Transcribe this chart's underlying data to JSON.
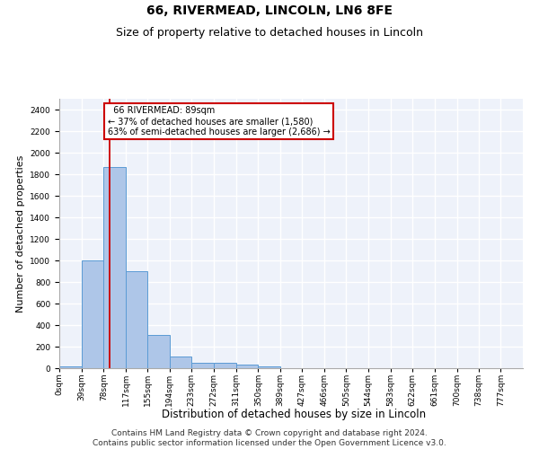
{
  "title1": "66, RIVERMEAD, LINCOLN, LN6 8FE",
  "title2": "Size of property relative to detached houses in Lincoln",
  "xlabel": "Distribution of detached houses by size in Lincoln",
  "ylabel": "Number of detached properties",
  "bin_labels": [
    "0sqm",
    "39sqm",
    "78sqm",
    "117sqm",
    "155sqm",
    "194sqm",
    "233sqm",
    "272sqm",
    "311sqm",
    "350sqm",
    "389sqm",
    "427sqm",
    "466sqm",
    "505sqm",
    "544sqm",
    "583sqm",
    "622sqm",
    "661sqm",
    "700sqm",
    "738sqm",
    "777sqm"
  ],
  "bin_edges": [
    0,
    39,
    78,
    117,
    155,
    194,
    233,
    272,
    311,
    350,
    389,
    427,
    466,
    505,
    544,
    583,
    622,
    661,
    700,
    738,
    777,
    816
  ],
  "bar_values": [
    20,
    1000,
    1870,
    900,
    310,
    105,
    50,
    50,
    30,
    20,
    0,
    0,
    0,
    0,
    0,
    0,
    0,
    0,
    0,
    0,
    0
  ],
  "bar_color": "#aec6e8",
  "bar_edgecolor": "#5b9bd5",
  "vline_x": 89,
  "vline_color": "#cc0000",
  "ylim": [
    0,
    2500
  ],
  "yticks": [
    0,
    200,
    400,
    600,
    800,
    1000,
    1200,
    1400,
    1600,
    1800,
    2000,
    2200,
    2400
  ],
  "annotation_title": "66 RIVERMEAD: 89sqm",
  "annotation_line1": "← 37% of detached houses are smaller (1,580)",
  "annotation_line2": "63% of semi-detached houses are larger (2,686) →",
  "annotation_box_color": "#cc0000",
  "footer1": "Contains HM Land Registry data © Crown copyright and database right 2024.",
  "footer2": "Contains public sector information licensed under the Open Government Licence v3.0.",
  "bg_color": "#eef2fa",
  "grid_color": "#ffffff",
  "title1_fontsize": 10,
  "title2_fontsize": 9,
  "xlabel_fontsize": 8.5,
  "ylabel_fontsize": 8,
  "tick_fontsize": 6.5,
  "footer_fontsize": 6.5
}
